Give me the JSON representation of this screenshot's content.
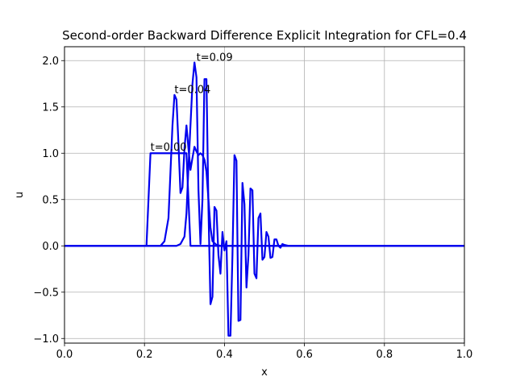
{
  "chart_data": {
    "type": "line",
    "title": "Second-order Backward Difference Explicit Integration for  CFL=0.4",
    "xlabel": "x",
    "ylabel": "u",
    "xlim": [
      0,
      1
    ],
    "ylim": [
      -1.05,
      2.15
    ],
    "grid": true,
    "line_color": "#0000ee",
    "x_ticks": [
      0.0,
      0.2,
      0.4,
      0.6,
      0.8,
      1.0
    ],
    "x_tick_labels": [
      "0.0",
      "0.2",
      "0.4",
      "0.6",
      "0.8",
      "1.0"
    ],
    "y_ticks": [
      -1.0,
      -0.5,
      0.0,
      0.5,
      1.0,
      1.5,
      2.0
    ],
    "y_tick_labels": [
      "−1.0",
      "−0.5",
      "0.0",
      "0.5",
      "1.0",
      "1.5",
      "2.0"
    ],
    "annotations": [
      {
        "text": "t=0.00",
        "x": 0.215,
        "y": 1.03
      },
      {
        "text": "t=0.04",
        "x": 0.275,
        "y": 1.65
      },
      {
        "text": "t=0.09",
        "x": 0.33,
        "y": 2.0
      }
    ],
    "series": [
      {
        "x": [
          0.0,
          0.205,
          0.21,
          0.215,
          0.22,
          0.24,
          0.26,
          0.28,
          0.3,
          0.305,
          0.31,
          0.315,
          0.32,
          1.0
        ],
        "y": [
          0.0,
          0.0,
          0.5,
          1.0,
          1.0,
          1.0,
          1.0,
          1.0,
          1.0,
          1.0,
          0.5,
          0.0,
          0.0,
          0.0
        ]
      },
      {
        "x": [
          0.0,
          0.24,
          0.25,
          0.26,
          0.265,
          0.27,
          0.275,
          0.28,
          0.285,
          0.29,
          0.295,
          0.3,
          0.305,
          0.31,
          0.315,
          0.32,
          0.325,
          0.33,
          0.335,
          0.34,
          0.345,
          0.35,
          0.355,
          0.36,
          0.365,
          0.37,
          0.38,
          0.39,
          0.4,
          1.0
        ],
        "y": [
          0.0,
          0.0,
          0.05,
          0.3,
          0.8,
          1.3,
          1.63,
          1.58,
          1.1,
          0.57,
          0.63,
          1.05,
          1.3,
          1.05,
          0.82,
          0.95,
          1.07,
          1.02,
          0.98,
          1.0,
          0.98,
          0.93,
          0.8,
          0.5,
          0.2,
          0.05,
          0.01,
          0.0,
          0.0,
          0.0
        ]
      },
      {
        "x": [
          0.0,
          0.28,
          0.29,
          0.3,
          0.305,
          0.31,
          0.315,
          0.32,
          0.325,
          0.33,
          0.335,
          0.34,
          0.345,
          0.35,
          0.355,
          0.36,
          0.365,
          0.37,
          0.375,
          0.38,
          0.385,
          0.39,
          0.395,
          0.4,
          0.405,
          0.41,
          0.415,
          0.42,
          0.425,
          0.43,
          0.435,
          0.44,
          0.445,
          0.45,
          0.455,
          0.46,
          0.465,
          0.47,
          0.475,
          0.48,
          0.485,
          0.49,
          0.495,
          0.5,
          0.505,
          0.51,
          0.515,
          0.52,
          0.525,
          0.53,
          0.535,
          0.54,
          0.545,
          0.55,
          0.56,
          0.58,
          1.0
        ],
        "y": [
          0.0,
          0.0,
          0.02,
          0.1,
          0.35,
          0.85,
          1.3,
          1.75,
          1.98,
          1.82,
          0.6,
          0.02,
          0.5,
          1.8,
          1.8,
          0.4,
          -0.63,
          -0.55,
          0.42,
          0.38,
          -0.1,
          -0.3,
          0.15,
          -0.05,
          0.05,
          -0.97,
          -0.97,
          -0.1,
          0.98,
          0.92,
          -0.81,
          -0.8,
          0.68,
          0.45,
          -0.45,
          -0.1,
          0.62,
          0.6,
          -0.3,
          -0.35,
          0.3,
          0.35,
          -0.15,
          -0.12,
          0.15,
          0.1,
          -0.13,
          -0.12,
          0.07,
          0.07,
          0.0,
          -0.02,
          0.02,
          0.01,
          0.0,
          0.0,
          0.0
        ]
      }
    ]
  }
}
